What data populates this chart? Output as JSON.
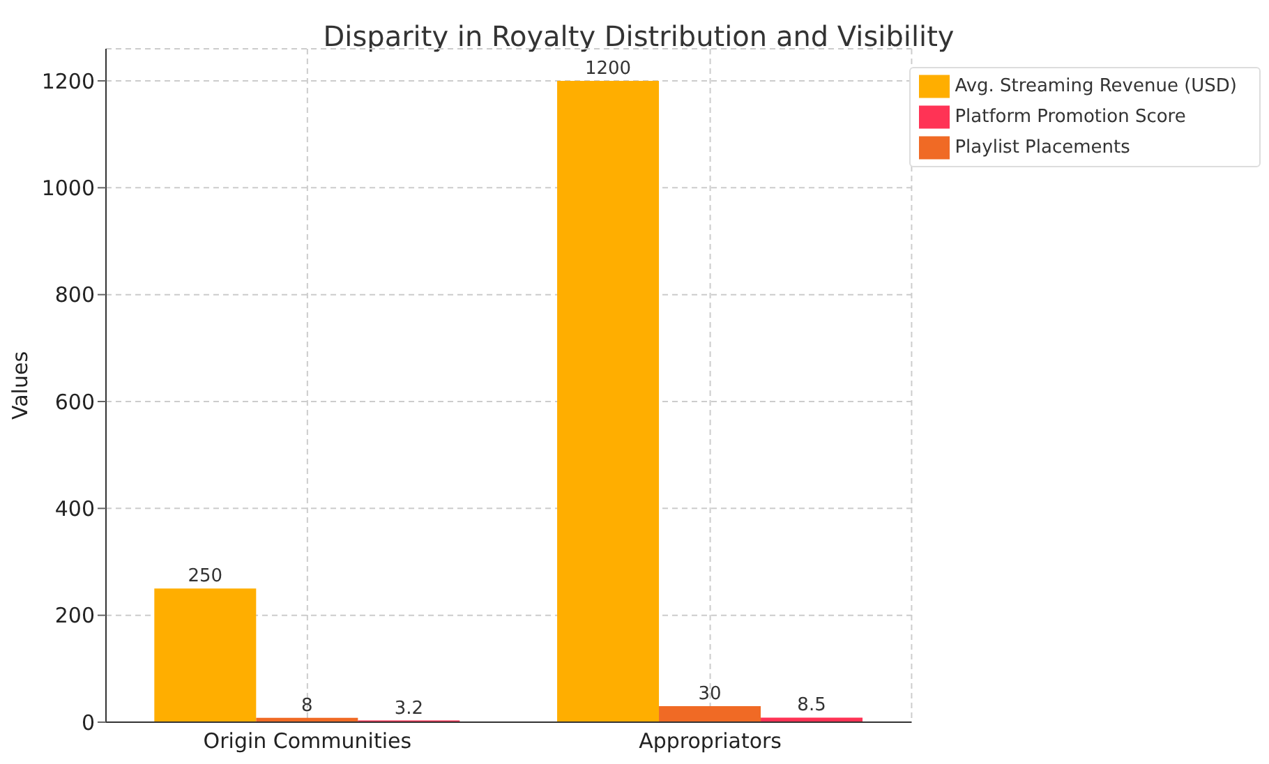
{
  "chart_data": {
    "type": "bar",
    "title": "Disparity in Royalty Distribution and Visibility",
    "ylabel": "Values",
    "categories": [
      "Origin Communities",
      "Appropriators"
    ],
    "series": [
      {
        "name": "Avg. Streaming Revenue (USD)",
        "color": "#ffae00",
        "values": [
          250,
          1200
        ]
      },
      {
        "name": "Playlist Placements",
        "color": "#f06a25",
        "values": [
          8,
          30
        ]
      },
      {
        "name": "Platform Promotion Score",
        "color": "#ff3355",
        "values": [
          3.2,
          8.5
        ]
      }
    ],
    "ylim": [
      0,
      1260
    ],
    "yticks": [
      0,
      200,
      400,
      600,
      800,
      1000,
      1200
    ],
    "grid": true,
    "legend": "top right",
    "data_labels": true
  }
}
